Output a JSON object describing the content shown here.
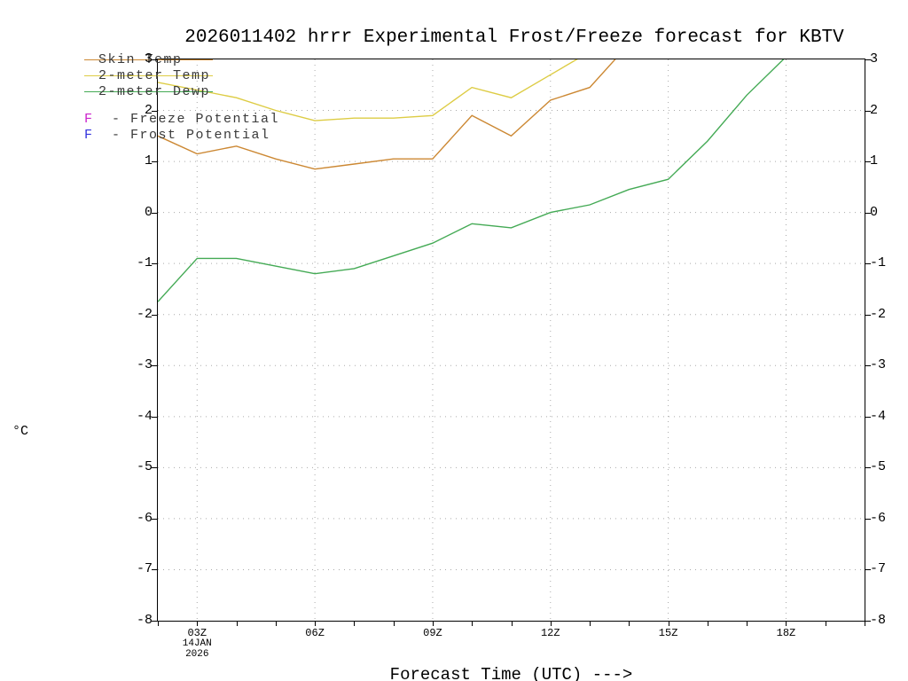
{
  "chart_data": {
    "type": "line",
    "title": "2026011402 hrrr Experimental Frost/Freeze forecast for KBTV",
    "xlabel": "Forecast Time (UTC) --->",
    "ylabel": "°C",
    "xlim": [
      2,
      20
    ],
    "ylim": [
      -8,
      3
    ],
    "grid": "dotted",
    "legend_position": "top-left",
    "yticks": [
      -8,
      -7,
      -6,
      -5,
      -4,
      -3,
      -2,
      -1,
      0,
      1,
      2,
      3
    ],
    "xticks": {
      "values": [
        3,
        6,
        9,
        12,
        15,
        18
      ],
      "labels": [
        "03Z",
        "06Z",
        "09Z",
        "12Z",
        "15Z",
        "18Z"
      ]
    },
    "date_annotation": {
      "tick": "03Z",
      "lines": [
        "14JAN",
        "2026"
      ]
    },
    "x": [
      2,
      3,
      4,
      5,
      6,
      7,
      8,
      9,
      10,
      11,
      12,
      13,
      14,
      15,
      16,
      17,
      18,
      19,
      20
    ],
    "series": [
      {
        "name": "Skin Temp",
        "color": "#CC8833",
        "values": [
          1.5,
          1.15,
          1.3,
          1.05,
          0.85,
          0.95,
          1.05,
          1.05,
          1.9,
          1.5,
          2.2,
          2.45,
          3.3,
          null,
          null,
          null,
          null,
          null,
          null
        ]
      },
      {
        "name": "2-meter Temp",
        "color": "#DDCC44",
        "values": [
          2.55,
          2.4,
          2.25,
          2.0,
          1.8,
          1.85,
          1.85,
          1.9,
          2.45,
          2.25,
          2.7,
          3.15,
          null,
          null,
          null,
          null,
          null,
          null,
          null
        ]
      },
      {
        "name": "2-meter Dewp",
        "color": "#44AA55",
        "values": [
          -1.75,
          -0.9,
          -0.9,
          -1.05,
          -1.2,
          -1.1,
          -0.85,
          -0.6,
          -0.22,
          -0.3,
          0.0,
          0.15,
          0.45,
          0.65,
          1.4,
          2.3,
          3.05,
          null,
          null
        ]
      }
    ],
    "potential_legend": [
      {
        "key": "F",
        "label": "- Freeze Potential",
        "color": "#CC22CC"
      },
      {
        "key": "F",
        "label": "- Frost Potential",
        "color": "#3333DD"
      }
    ]
  }
}
